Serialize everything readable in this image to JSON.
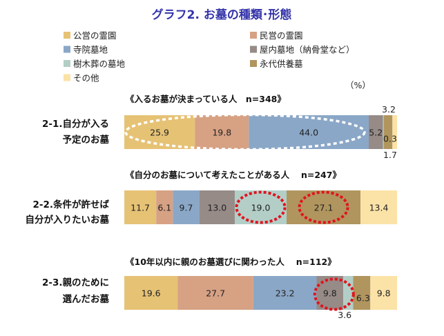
{
  "chart_data": {
    "type": "bar",
    "stacked": true,
    "orientation": "horizontal",
    "normalized_to": 100,
    "title": "グラフ2. お墓の種類･形態",
    "unit": "（%）",
    "legend": [
      {
        "name": "公営の霊園",
        "color": "#e6c275"
      },
      {
        "name": "民営の霊園",
        "color": "#d7a184"
      },
      {
        "name": "寺院墓地",
        "color": "#8aa7c7"
      },
      {
        "name": "屋内墓地（納骨堂など）",
        "color": "#968b87"
      },
      {
        "name": "樹木葬の墓地",
        "color": "#b3cec7"
      },
      {
        "name": "永代供養墓",
        "color": "#b0955e"
      },
      {
        "name": "その他",
        "color": "#fbe2a6"
      }
    ],
    "rows": [
      {
        "group_label": "《入るお墓が決まっている人　n=348》",
        "label_line1": "2-1.自分が入る",
        "label_line2": "予定のお墓",
        "values": [
          25.9,
          19.8,
          44.0,
          5.2,
          0.3,
          3.2,
          1.7
        ],
        "value_labels": [
          "25.9",
          "19.8",
          "44.0",
          "5.2",
          "0.3",
          "3.2",
          "1.7"
        ]
      },
      {
        "group_label": "《自分のお墓について考えたことがある人　 n=247》",
        "label_line1": "2-2.条件が許せば",
        "label_line2": "自分が入りたいお墓",
        "values": [
          11.7,
          6.1,
          9.7,
          13.0,
          19.0,
          27.1,
          13.4
        ],
        "value_labels": [
          "11.7",
          "6.1",
          "9.7",
          "13.0",
          "19.0",
          "27.1",
          "13.4"
        ]
      },
      {
        "group_label": "《10年以内に親のお墓選びに関わった人　 n=112》",
        "label_line1": "2-3.親のために",
        "label_line2": "選んだお墓",
        "values": [
          19.6,
          27.7,
          23.2,
          9.8,
          3.6,
          6.3,
          9.8
        ],
        "value_labels": [
          "19.6",
          "27.7",
          "23.2",
          "9.8",
          "3.6",
          "6.3",
          "9.8"
        ]
      }
    ]
  }
}
